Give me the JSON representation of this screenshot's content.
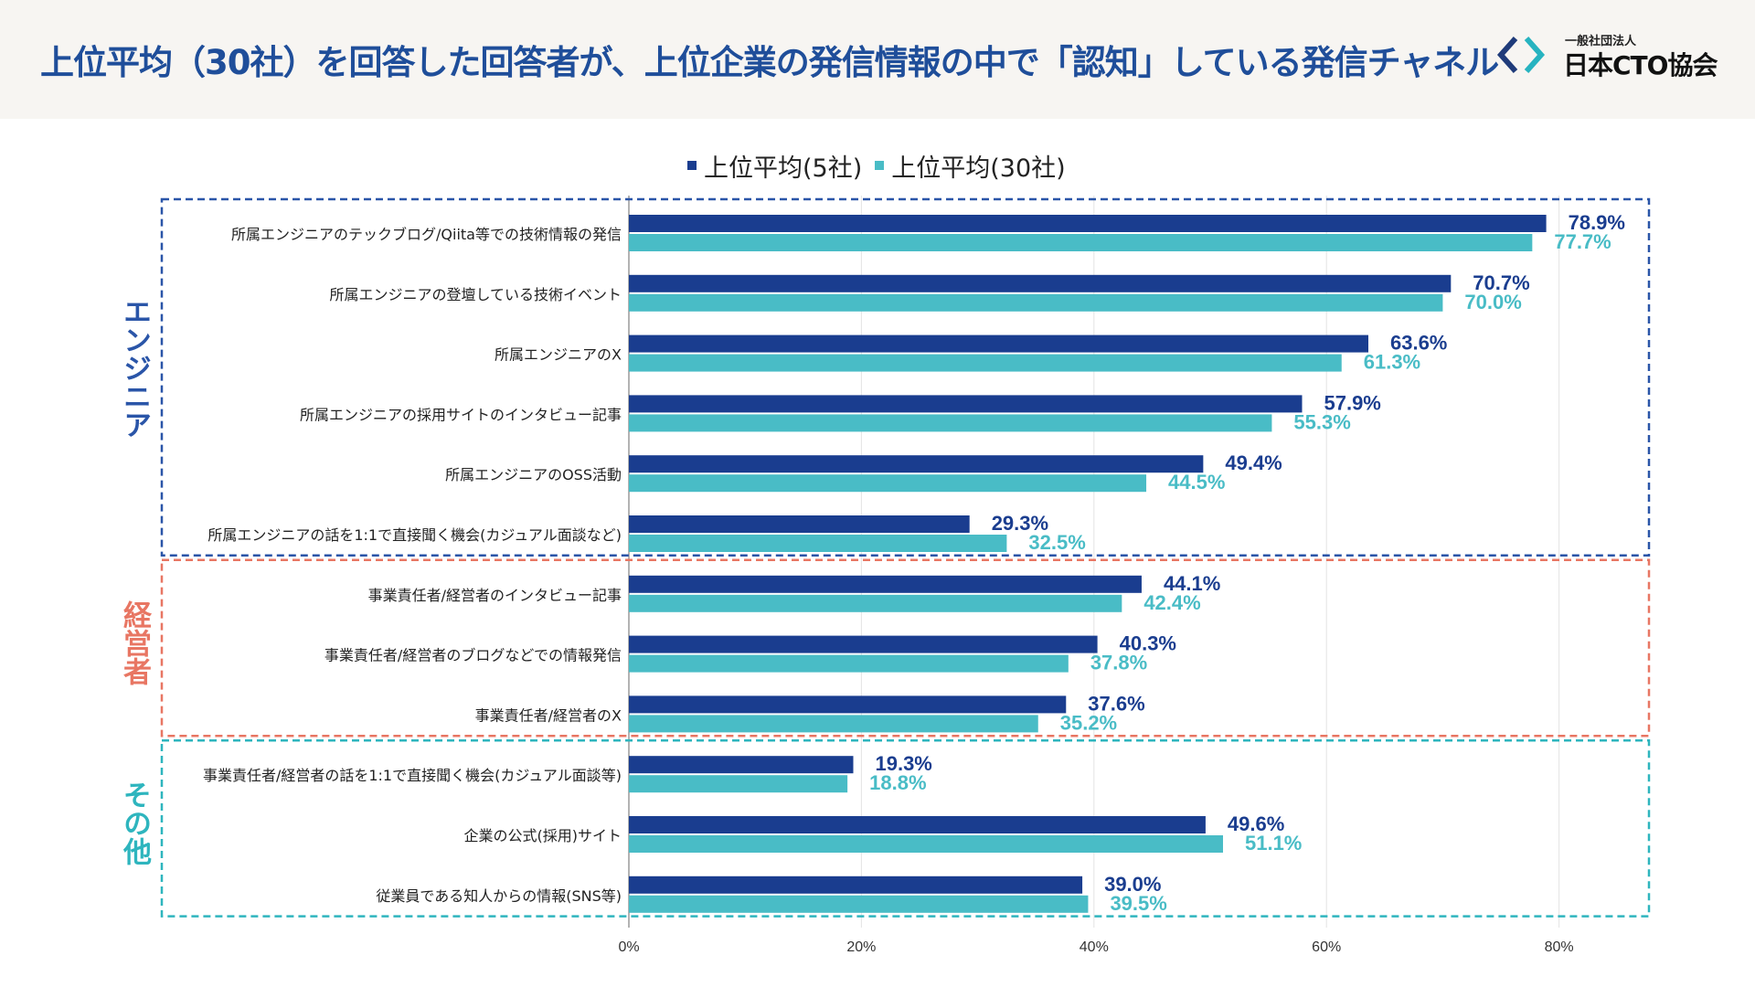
{
  "header": {
    "title": "上位平均（30社）を回答した回答者が、上位企業の発信情報の中で「認知」している発信チャネル",
    "logo_small": "一般社団法人",
    "logo_big": "日本CTO協会"
  },
  "colors": {
    "series1": "#1a3d8f",
    "series2": "#49bcc6",
    "title": "#1f4e9a",
    "engineer": "#2a55a8",
    "management": "#e87663",
    "other": "#2eb5be"
  },
  "groups": [
    {
      "label": "エンジニア",
      "color_key": "engineer",
      "start": 0,
      "end": 5
    },
    {
      "label": "経営者",
      "color_key": "management",
      "start": 6,
      "end": 8
    },
    {
      "label": "その他",
      "color_key": "other",
      "start": 9,
      "end": 11
    }
  ],
  "chart_data": {
    "type": "bar",
    "orientation": "horizontal",
    "title": "",
    "xlabel": "",
    "ylabel": "",
    "xlim": [
      0,
      88
    ],
    "x_ticks": [
      "0%",
      "20%",
      "40%",
      "60%",
      "80%"
    ],
    "x_tick_values": [
      0,
      20,
      40,
      60,
      80
    ],
    "grid": true,
    "legend_position": "top-center",
    "categories": [
      "所属エンジニアのテックブログ/Qiita等での技術情報の発信",
      "所属エンジニアの登壇している技術イベント",
      "所属エンジニアのX",
      "所属エンジニアの採用サイトのインタビュー記事",
      "所属エンジニアのOSS活動",
      "所属エンジニアの話を1:1で直接聞く機会(カジュアル面談など)",
      "事業責任者/経営者のインタビュー記事",
      "事業責任者/経営者のブログなどでの情報発信",
      "事業責任者/経営者のX",
      "事業責任者/経営者の話を1:1で直接聞く機会(カジュアル面談等)",
      "企業の公式(採用)サイト",
      "従業員である知人からの情報(SNS等)"
    ],
    "series": [
      {
        "name": "上位平均(5社)",
        "values": [
          78.9,
          70.7,
          63.6,
          57.9,
          49.4,
          29.3,
          44.1,
          40.3,
          37.6,
          19.3,
          49.6,
          39.0
        ],
        "labels": [
          "78.9%",
          "70.7%",
          "63.6%",
          "57.9%",
          "49.4%",
          "29.3%",
          "44.1%",
          "40.3%",
          "37.6%",
          "19.3%",
          "49.6%",
          "39.0%"
        ]
      },
      {
        "name": "上位平均(30社)",
        "values": [
          77.7,
          70.0,
          61.3,
          55.3,
          44.5,
          32.5,
          42.4,
          37.8,
          35.2,
          18.8,
          51.1,
          39.5
        ],
        "labels": [
          "77.7%",
          "70.0%",
          "61.3%",
          "55.3%",
          "44.5%",
          "32.5%",
          "42.4%",
          "37.8%",
          "35.2%",
          "18.8%",
          "51.1%",
          "39.5%"
        ]
      }
    ]
  }
}
